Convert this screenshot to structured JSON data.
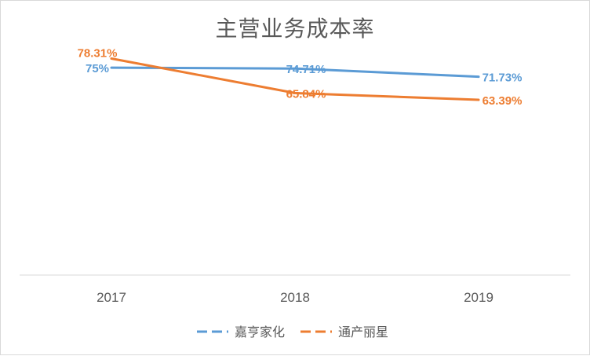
{
  "chart_data": {
    "type": "line",
    "title": "主营业务成本率",
    "categories": [
      "2017",
      "2018",
      "2019"
    ],
    "series": [
      {
        "name": "嘉亨家化",
        "values": [
          75,
          74.71,
          71.73
        ],
        "labels": [
          "75%",
          "74.71%",
          "71.73%"
        ],
        "color": "#5b9bd5"
      },
      {
        "name": "通产丽星",
        "values": [
          78.31,
          65.84,
          63.39
        ],
        "labels": [
          "78.31%",
          "65.84%",
          "63.39%"
        ],
        "color": "#ed7d31"
      }
    ],
    "ylim": [
      0,
      85
    ],
    "grid": false,
    "legend_position": "bottom"
  }
}
